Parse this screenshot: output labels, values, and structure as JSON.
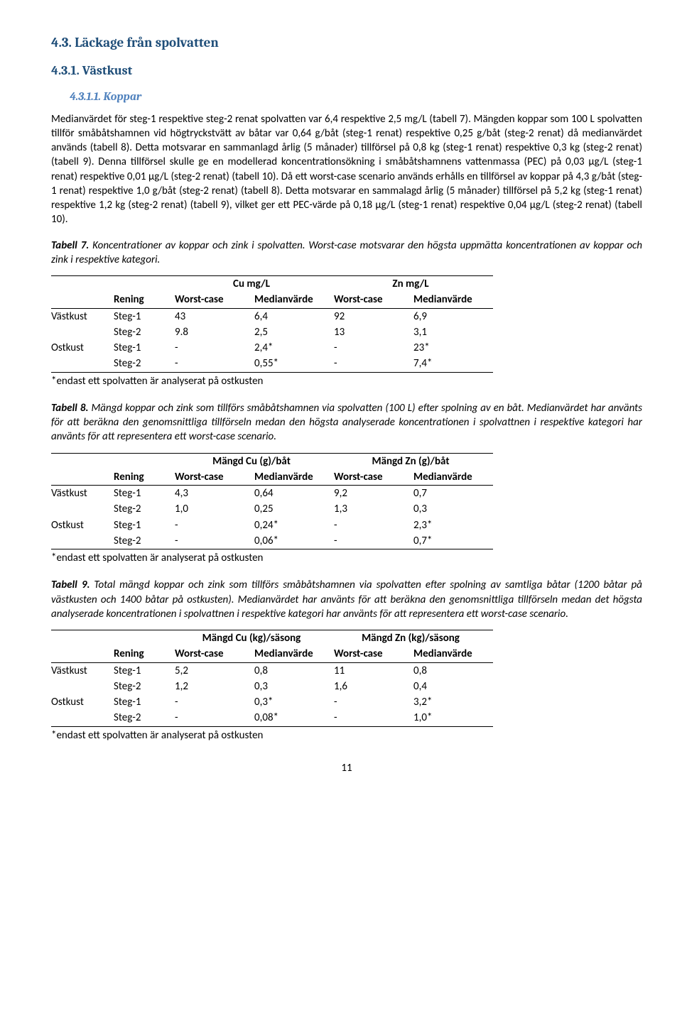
{
  "h1": "4.3.   Läckage från spolvatten",
  "h2": "4.3.1.   Västkust",
  "h3": "4.3.1.1.      Koppar",
  "para1": "Medianvärdet för steg-1 respektive steg-2 renat spolvatten var 6,4 respektive 2,5 mg/L (tabell 7). Mängden koppar som 100 L spolvatten tillför småbåtshamnen vid högtryckstvätt av båtar var 0,64 g/båt (steg-1 renat) respektive 0,25 g/båt (steg-2 renat) då medianvärdet används (tabell 8). Detta motsvarar en sammanlagd årlig (5 månader) tillförsel på 0,8 kg (steg-1 renat) respektive 0,3 kg (steg-2 renat) (tabell 9). Denna tillförsel skulle ge en modellerad koncentrationsökning i småbåtshamnens vattenmassa (PEC) på 0,03 µg/L (steg-1 renat) respektive 0,01 µg/L (steg-2 renat) (tabell 10). Då ett worst-case scenario används erhålls en tillförsel av koppar på 4,3 g/båt (steg-1 renat) respektive 1,0 g/båt (steg-2 renat) (tabell 8). Detta motsvarar en sammalagd årlig (5 månader) tillförsel på 5,2 kg (steg-1 renat) respektive 1,2 kg (steg-2 renat) (tabell 9), vilket ger ett PEC-värde på 0,18 µg/L (steg-1 renat) respektive 0,04 µg/L (steg-2 renat) (tabell 10).",
  "t7": {
    "caption_bold": "Tabell 7.",
    "caption_ital": " Koncentrationer av koppar och zink i spolvatten. Worst-case motsvarar den högsta uppmätta koncentrationen av koppar och zink i respektive kategori.",
    "group1": "Cu mg/L",
    "group2": "Zn mg/L",
    "col_rening": "Rening",
    "col_wc": "Worst-case",
    "col_med": "Medianvärde",
    "rows": [
      {
        "region": "Västkust",
        "rening": "Steg-1",
        "c": [
          "43",
          "6,4",
          "92",
          "6,9"
        ]
      },
      {
        "region": "",
        "rening": "Steg-2",
        "c": [
          "9.8",
          "2,5",
          "13",
          "3,1"
        ]
      },
      {
        "region": "Ostkust",
        "rening": "Steg-1",
        "c": [
          "-",
          "2,4*",
          "-",
          "23*"
        ]
      },
      {
        "region": "",
        "rening": "Steg-2",
        "c": [
          "-",
          "0,55*",
          "-",
          "7,4*"
        ]
      }
    ],
    "footnote": "*endast ett spolvatten är analyserat på ostkusten"
  },
  "t8": {
    "caption_bold": "Tabell 8.",
    "caption_ital": " Mängd koppar och zink som tillförs småbåtshamnen via spolvatten (100 L) efter spolning av en båt. Medianvärdet har använts för att beräkna den genomsnittliga tillförseln medan den högsta analyserade koncentrationen i spolvattnen i respektive kategori har använts för att representera ett worst-case scenario.",
    "group1": "Mängd Cu (g)/båt",
    "group2": "Mängd Zn (g)/båt",
    "col_rening": "Rening",
    "col_wc": "Worst-case",
    "col_med": "Medianvärde",
    "rows": [
      {
        "region": "Västkust",
        "rening": "Steg-1",
        "c": [
          "4,3",
          "0,64",
          "9,2",
          "0,7"
        ]
      },
      {
        "region": "",
        "rening": "Steg-2",
        "c": [
          "1,0",
          "0,25",
          "1,3",
          "0,3"
        ]
      },
      {
        "region": "Ostkust",
        "rening": "Steg-1",
        "c": [
          "-",
          "0,24*",
          "-",
          "2,3*"
        ]
      },
      {
        "region": "",
        "rening": "Steg-2",
        "c": [
          "-",
          "0,06*",
          "-",
          "0,7*"
        ]
      }
    ],
    "footnote": "*endast ett spolvatten är analyserat på ostkusten"
  },
  "t9": {
    "caption_bold": "Tabell 9.",
    "caption_ital": " Total mängd koppar och zink som tillförs småbåtshamnen via spolvatten efter spolning av samtliga båtar (1200 båtar på västkusten och 1400 båtar på ostkusten). Medianvärdet har använts för att beräkna den genomsnittliga tillförseln medan det högsta analyserade koncentrationen i spolvattnen i respektive kategori har använts för att representera ett worst-case scenario.",
    "group1": "Mängd Cu (kg)/säsong",
    "group2": "Mängd Zn (kg)/säsong",
    "col_rening": "Rening",
    "col_wc": "Worst-case",
    "col_med": "Medianvärde",
    "rows": [
      {
        "region": "Västkust",
        "rening": "Steg-1",
        "c": [
          "5,2",
          "0,8",
          "11",
          "0,8"
        ]
      },
      {
        "region": "",
        "rening": "Steg-2",
        "c": [
          "1,2",
          "0,3",
          "1,6",
          "0,4"
        ]
      },
      {
        "region": "Ostkust",
        "rening": "Steg-1",
        "c": [
          "-",
          "0,3*",
          "-",
          "3,2*"
        ]
      },
      {
        "region": "",
        "rening": "Steg-2",
        "c": [
          "-",
          "0,08*",
          "-",
          "1,0*"
        ]
      }
    ],
    "footnote": "*endast ett spolvatten är analyserat på ostkusten"
  },
  "page_number": "11"
}
